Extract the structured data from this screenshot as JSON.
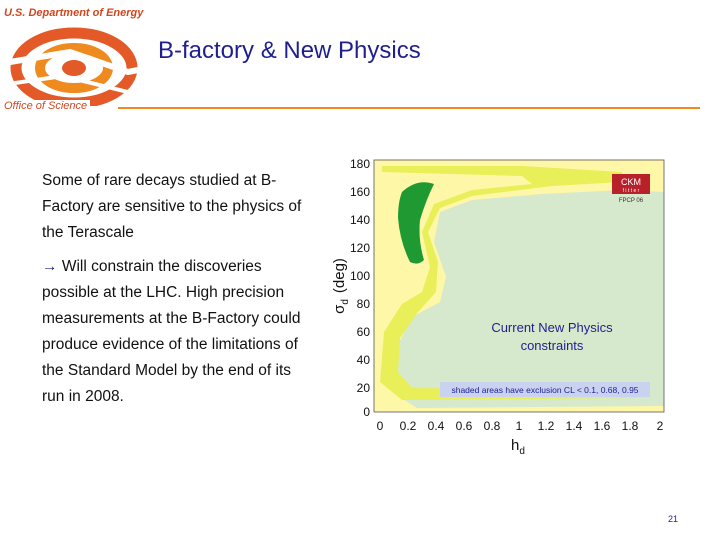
{
  "header": {
    "agency": "U.S. Department of Energy",
    "title": "B-factory & New Physics",
    "office": "Office of Science"
  },
  "body": {
    "paragraph1": "Some of rare decays studied at B-Factory are sensitive to the physics of the Terascale",
    "arrow": "→",
    "paragraph2": "Will constrain the discoveries possible at the LHC. High precision measurements at the B-Factory could produce evidence of the limitations of the Standard Model by the end of its run in 2008."
  },
  "plot": {
    "y_ticks": [
      "180",
      "160",
      "140",
      "120",
      "100",
      "80",
      "60",
      "40",
      "20",
      "0"
    ],
    "x_ticks": [
      "0",
      "0.2",
      "0.4",
      "0.6",
      "0.8",
      "1",
      "1.2",
      "1.4",
      "1.6",
      "1.8",
      "2"
    ],
    "y_label_symbol": "σ",
    "y_label_sub": "d",
    "y_label_unit": "(deg)",
    "x_label": "h",
    "x_label_sub": "d",
    "ckm_badge": "CKM",
    "ckm_sub": "f i t t e r",
    "ckm_tag": "FPCP 06",
    "annotation_line1": "Current New Physics",
    "annotation_line2": "constraints",
    "legend_note": "shaded areas have exclusion CL < 0.1, 0.68, 0.95",
    "colors": {
      "outer_region": "#fff7a8",
      "middle_region": "#e8ef58",
      "core_region": "#1f9a32",
      "background": "#d6e9cc"
    }
  },
  "footer": {
    "page_number": "21"
  }
}
